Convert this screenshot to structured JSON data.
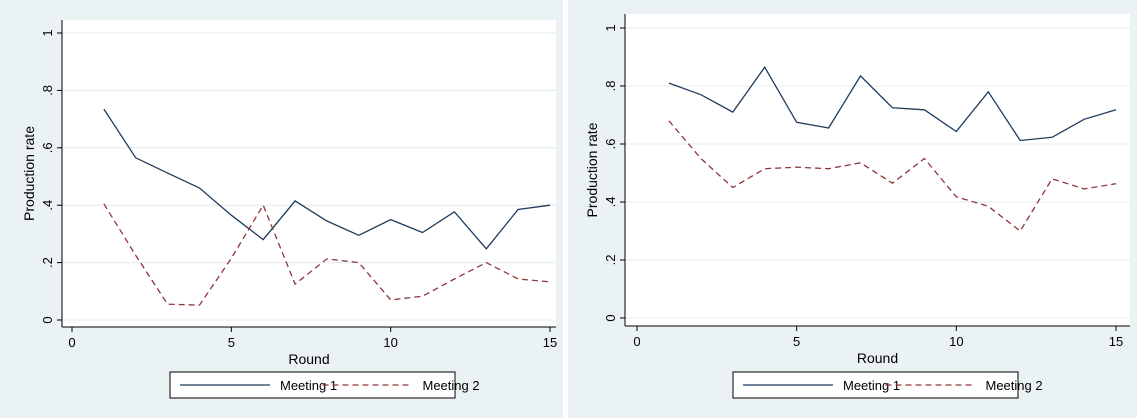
{
  "colors": {
    "meeting1": "#1f3b5c",
    "meeting2": "#90353b"
  },
  "chart_data": [
    {
      "type": "line",
      "xlabel": "Round",
      "ylabel": "Production rate",
      "xlim": [
        0,
        15
      ],
      "ylim": [
        0,
        1
      ],
      "xticks": [
        0,
        5,
        10,
        15
      ],
      "yticks": [
        0,
        0.2,
        0.4,
        0.6,
        0.8,
        1
      ],
      "ytick_labels": [
        "0",
        ".2",
        ".4",
        ".6",
        ".8",
        "1"
      ],
      "grid": true,
      "legend_position": "bottom",
      "x": [
        1,
        2,
        3,
        4,
        5,
        6,
        7,
        8,
        9,
        10,
        11,
        12,
        13,
        14,
        15
      ],
      "series": [
        {
          "name": "Meeting 1",
          "style": "solid",
          "values": [
            0.735,
            0.565,
            0.512,
            0.46,
            0.365,
            0.28,
            0.415,
            0.345,
            0.295,
            0.35,
            0.305,
            0.377,
            0.248,
            0.385,
            0.4
          ]
        },
        {
          "name": "Meeting 2",
          "style": "dashed",
          "values": [
            0.405,
            0.225,
            0.055,
            0.052,
            0.215,
            0.4,
            0.125,
            0.213,
            0.2,
            0.07,
            0.083,
            0.143,
            0.2,
            0.143,
            0.133
          ]
        }
      ]
    },
    {
      "type": "line",
      "xlabel": "Round",
      "ylabel": "Production rate",
      "xlim": [
        0,
        15
      ],
      "ylim": [
        0,
        1
      ],
      "xticks": [
        0,
        5,
        10,
        15
      ],
      "yticks": [
        0,
        0.2,
        0.4,
        0.6,
        0.8,
        1
      ],
      "ytick_labels": [
        "0",
        ".2",
        ".4",
        ".6",
        ".8",
        "1"
      ],
      "grid": true,
      "legend_position": "bottom",
      "x": [
        1,
        2,
        3,
        4,
        5,
        6,
        7,
        8,
        9,
        10,
        11,
        12,
        13,
        14,
        15
      ],
      "series": [
        {
          "name": "Meeting 1",
          "style": "solid",
          "values": [
            0.81,
            0.77,
            0.71,
            0.865,
            0.675,
            0.655,
            0.835,
            0.725,
            0.718,
            0.643,
            0.78,
            0.612,
            0.623,
            0.685,
            0.718
          ]
        },
        {
          "name": "Meeting 2",
          "style": "dashed",
          "values": [
            0.68,
            0.55,
            0.45,
            0.515,
            0.52,
            0.515,
            0.535,
            0.465,
            0.55,
            0.418,
            0.385,
            0.3,
            0.48,
            0.445,
            0.463
          ]
        }
      ]
    }
  ]
}
